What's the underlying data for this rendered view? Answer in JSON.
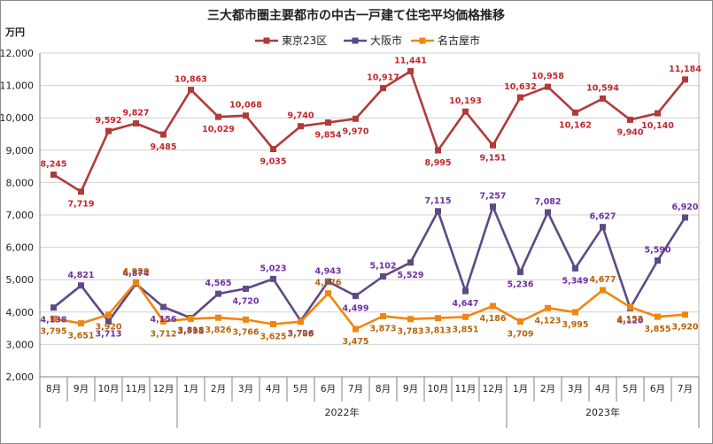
{
  "chart_data": {
    "type": "line",
    "title": "三大都市圏主要都市の中古一戸建て住宅平均価格推移",
    "unit_label": "万円",
    "ylim": [
      2000,
      12000
    ],
    "y_ticks": [
      "2,000",
      "3,000",
      "4,000",
      "5,000",
      "6,000",
      "7,000",
      "8,000",
      "9,000",
      "10,000",
      "11,000",
      "12,000"
    ],
    "categories": [
      "8月",
      "9月",
      "10月",
      "11月",
      "12月",
      "1月",
      "2月",
      "3月",
      "4月",
      "5月",
      "6月",
      "7月",
      "8月",
      "9月",
      "10月",
      "11月",
      "12月",
      "1月",
      "2月",
      "3月",
      "4月",
      "5月",
      "6月",
      "7月"
    ],
    "year_labels": [
      {
        "label": "2022年",
        "start": 5,
        "end": 16
      },
      {
        "label": "2023年",
        "start": 17,
        "end": 23
      }
    ],
    "legend_position": "top-center",
    "grid": "horizontal",
    "series": [
      {
        "name": "東京23区",
        "color": "#B23A3A",
        "label_color": "#C0282D",
        "marker": "square",
        "values": [
          8245,
          7719,
          9592,
          9827,
          9485,
          10863,
          10029,
          10068,
          9035,
          9740,
          9854,
          9970,
          10917,
          11441,
          8995,
          10193,
          9151,
          10632,
          10958,
          10162,
          10594,
          9940,
          10140,
          11184
        ],
        "labels": [
          "8,245",
          "7,719",
          "9,592",
          "9,827",
          "9,485",
          "10,863",
          "10,029",
          "10,068",
          "9,035",
          "9,740",
          "9,854",
          "9,970",
          "10,917",
          "11,441",
          "8,995",
          "10,193",
          "9,151",
          "10,632",
          "10,958",
          "10,162",
          "10,594",
          "9,940",
          "10,140",
          "11,184"
        ]
      },
      {
        "name": "大阪市",
        "color": "#5E4A86",
        "label_color": "#7030A0",
        "marker": "square",
        "values": [
          4138,
          4821,
          3713,
          4874,
          4156,
          3818,
          4565,
          4720,
          5023,
          3726,
          4943,
          4499,
          5102,
          5529,
          7115,
          4647,
          7257,
          5236,
          7082,
          5349,
          6627,
          4120,
          5590,
          6920
        ],
        "labels": [
          "4,138",
          "4,821",
          "3,713",
          "4,874",
          "4,156",
          "3,818",
          "4,565",
          "4,720",
          "5,023",
          "3,726",
          "4,943",
          "4,499",
          "5,102",
          "5,529",
          "7,115",
          "4,647",
          "7,257",
          "5,236",
          "7,082",
          "5,349",
          "6,627",
          "4,120",
          "5,590",
          "6,920"
        ]
      },
      {
        "name": "名古屋市",
        "color": "#F0860F",
        "label_color": "#B8650A",
        "marker": "square",
        "values": [
          3795,
          3651,
          3920,
          4920,
          3712,
          3792,
          3826,
          3766,
          3625,
          3703,
          4576,
          3475,
          3873,
          3783,
          3813,
          3851,
          4186,
          3709,
          4123,
          3995,
          4677,
          4152,
          3855,
          3920
        ],
        "labels": [
          "3,795",
          "3,651",
          "3,920",
          "4,920",
          "3,712",
          "3,792",
          "3,826",
          "3,766",
          "3,625",
          "3,703",
          "4,576",
          "3,475",
          "3,873",
          "3,783",
          "3,813",
          "3,851",
          "4,186",
          "3,709",
          "4,123",
          "3,995",
          "4,677",
          "4,152",
          "3,855",
          "3,920"
        ]
      }
    ]
  }
}
